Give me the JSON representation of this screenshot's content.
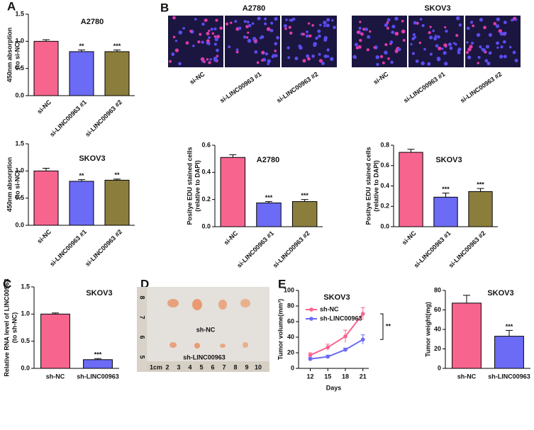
{
  "panel_labels": [
    "A",
    "B",
    "C",
    "D",
    "E"
  ],
  "edu_images": {
    "groups": [
      {
        "title": "A2780",
        "labels": [
          "si-NC",
          "si-LINC00963 #1",
          "si-LINC00963 #2"
        ]
      },
      {
        "title": "SKOV3",
        "labels": [
          "si-NC",
          "si-LINC00963 #1",
          "si-LINC00963 #2"
        ]
      }
    ]
  },
  "tumor_photo": {
    "labels": [
      "sh-NC",
      "sh-LINC00963"
    ],
    "ruler_bottom": [
      "1cm",
      "2",
      "3",
      "4",
      "5",
      "6",
      "7",
      "8",
      "9",
      "10"
    ],
    "ruler_left": [
      "8",
      "7",
      "6",
      "5"
    ]
  },
  "chart_data": [
    {
      "type": "bar",
      "title": "A2780",
      "ylabel": [
        "450nm absorption",
        "(to si-NC)"
      ],
      "categories": [
        "si-NC",
        "si-LINC00963 #1",
        "si-LINC00963 #2"
      ],
      "values": [
        1.0,
        0.81,
        0.81
      ],
      "errors": [
        0.03,
        0.03,
        0.03
      ],
      "significance": [
        null,
        "**",
        "***"
      ],
      "colors": [
        "#f7658f",
        "#6b6bf5",
        "#8b7d3c"
      ],
      "ylim": [
        0,
        1.5
      ],
      "yticks": [
        {
          "value": 0,
          "label": "0.0"
        },
        0.5,
        {
          "value": 1,
          "label": "1.0"
        },
        1.5
      ]
    },
    {
      "type": "bar",
      "title": "SKOV3",
      "ylabel": [
        "450nm absorption",
        "(to si-NC)"
      ],
      "categories": [
        "si-NC",
        "si-LINC00963 #1",
        "si-LINC00963 #2"
      ],
      "values": [
        1.0,
        0.81,
        0.83
      ],
      "errors": [
        0.05,
        0.03,
        0.02
      ],
      "significance": [
        null,
        "**",
        "**"
      ],
      "colors": [
        "#f7658f",
        "#6b6bf5",
        "#8b7d3c"
      ],
      "ylim": [
        0,
        1.5
      ],
      "yticks": [
        {
          "value": 0,
          "label": "0.0"
        },
        0.5,
        {
          "value": 1,
          "label": "1.0"
        },
        1.5
      ]
    },
    {
      "type": "bar",
      "title": "A2780",
      "ylabel": [
        "Positye EDU stained cells",
        "(relative to DAPI)"
      ],
      "categories": [
        "si-NC",
        "si-LINC00963 #1",
        "si-LINC00963 #2"
      ],
      "values": [
        0.51,
        0.175,
        0.185
      ],
      "errors": [
        0.02,
        0.01,
        0.015
      ],
      "significance": [
        null,
        "***",
        "***"
      ],
      "colors": [
        "#f7658f",
        "#6b6bf5",
        "#8b7d3c"
      ],
      "ylim": [
        0,
        0.6
      ],
      "yticks": [
        {
          "value": 0,
          "label": "0.0"
        },
        0.2,
        0.4,
        0.6
      ]
    },
    {
      "type": "bar",
      "title": "SKOV3",
      "ylabel": [
        "Positye EDU stained cells",
        "(relative to DAPI)"
      ],
      "categories": [
        "si-NC",
        "si-LINC00963 #1",
        "si-LINC00963 #2"
      ],
      "values": [
        0.73,
        0.29,
        0.345
      ],
      "errors": [
        0.03,
        0.04,
        0.03
      ],
      "significance": [
        null,
        "***",
        "***"
      ],
      "colors": [
        "#f7658f",
        "#6b6bf5",
        "#8b7d3c"
      ],
      "ylim": [
        0,
        0.8
      ],
      "yticks": [
        {
          "value": 0,
          "label": "0.0"
        },
        0.2,
        0.4,
        0.6,
        0.8
      ]
    },
    {
      "type": "bar",
      "title": "SKOV3",
      "ylabel": [
        "Relative RNA level of LINC00963",
        "(to sh-NC)"
      ],
      "categories": [
        "sh-NC",
        "sh-LINC00963"
      ],
      "values": [
        1.0,
        0.16
      ],
      "errors": [
        0.02,
        0.02
      ],
      "significance": [
        null,
        "***"
      ],
      "colors": [
        "#f7658f",
        "#6b6bf5"
      ],
      "ylim": [
        0,
        1.5
      ],
      "yticks": [
        {
          "value": 0,
          "label": "0.0"
        },
        0.5,
        {
          "value": 1,
          "label": "1.0"
        },
        1.5
      ]
    },
    {
      "type": "line",
      "title": "SKOV3",
      "ylabel": [
        "Tumor volume(mm³)"
      ],
      "xlabel": "Days",
      "x": [
        12,
        15,
        18,
        21
      ],
      "xticks": [
        12,
        15,
        18,
        21
      ],
      "xlim": [
        10,
        22
      ],
      "series": [
        {
          "name": "sh-NC",
          "color": "#f7658f",
          "values": [
            17,
            27,
            41,
            70
          ],
          "errors": [
            3,
            4,
            8,
            8
          ]
        },
        {
          "name": "sh-LINC00963",
          "color": "#6b6bf5",
          "values": [
            12,
            15,
            24,
            37
          ],
          "errors": [
            2,
            2,
            2,
            6
          ]
        }
      ],
      "annotation": "**",
      "ylim": [
        0,
        100
      ],
      "yticks": [
        0,
        20,
        40,
        60,
        80,
        100
      ]
    },
    {
      "type": "bar",
      "title": "SKOV3",
      "ylabel": [
        "Tumor weight(mg)"
      ],
      "categories": [
        "sh-NC",
        "sh-LINC00963"
      ],
      "values": [
        67,
        33
      ],
      "errors": [
        8,
        6
      ],
      "significance": [
        null,
        "***"
      ],
      "colors": [
        "#f7658f",
        "#6b6bf5"
      ],
      "ylim": [
        0,
        80
      ],
      "yticks": [
        0,
        20,
        40,
        60,
        80
      ]
    }
  ]
}
